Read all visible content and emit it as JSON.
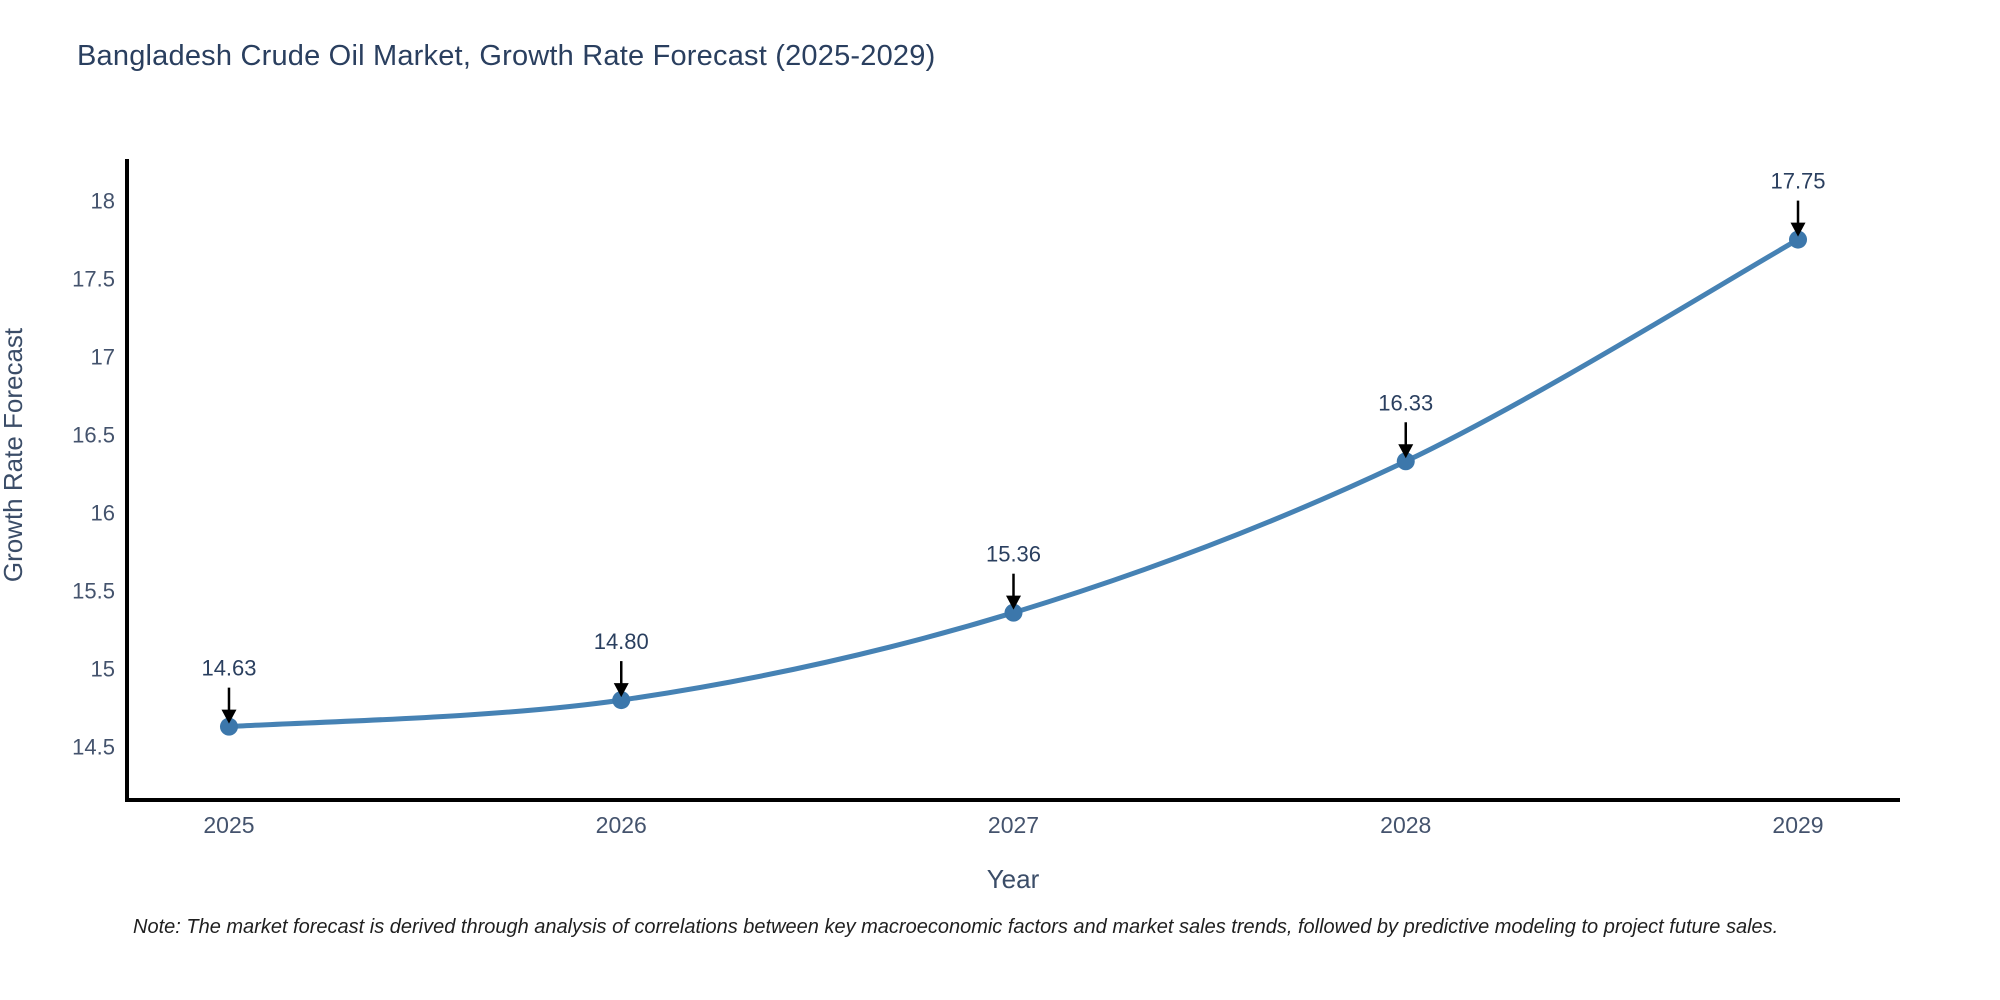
{
  "title": "Bangladesh Crude Oil Market, Growth Rate Forecast (2025-2029)",
  "note": "Note: The market forecast is derived through analysis of correlations between key macroeconomic factors and market sales trends, followed by predictive modeling to project future sales.",
  "colors": {
    "line": "#4682b4",
    "marker": "#3c77ab",
    "axis": "#000000",
    "arrow": "#000000",
    "title_text": "#2a3f5f",
    "tick_text": "#44536d",
    "note_text": "#1f1f1f",
    "background": "#ffffff"
  },
  "chart_data": {
    "type": "line",
    "title": "Bangladesh Crude Oil Market, Growth Rate Forecast (2025-2029)",
    "xlabel": "Year",
    "ylabel": "Growth Rate Forecast",
    "x": [
      2025,
      2026,
      2027,
      2028,
      2029
    ],
    "values": [
      14.63,
      14.8,
      15.36,
      16.33,
      17.75
    ],
    "point_labels": [
      "14.63",
      "14.80",
      "15.36",
      "16.33",
      "17.75"
    ],
    "xticks": [
      2025,
      2026,
      2027,
      2028,
      2029
    ],
    "yticks": [
      14.5,
      15,
      15.5,
      16,
      16.5,
      17,
      17.5,
      18
    ],
    "xlim": [
      2024.74,
      2029.26
    ],
    "ylim": [
      14.16,
      18.26
    ],
    "line_shape": "spline",
    "grid": false,
    "legend_position": "none",
    "annotations_arrows": true
  }
}
